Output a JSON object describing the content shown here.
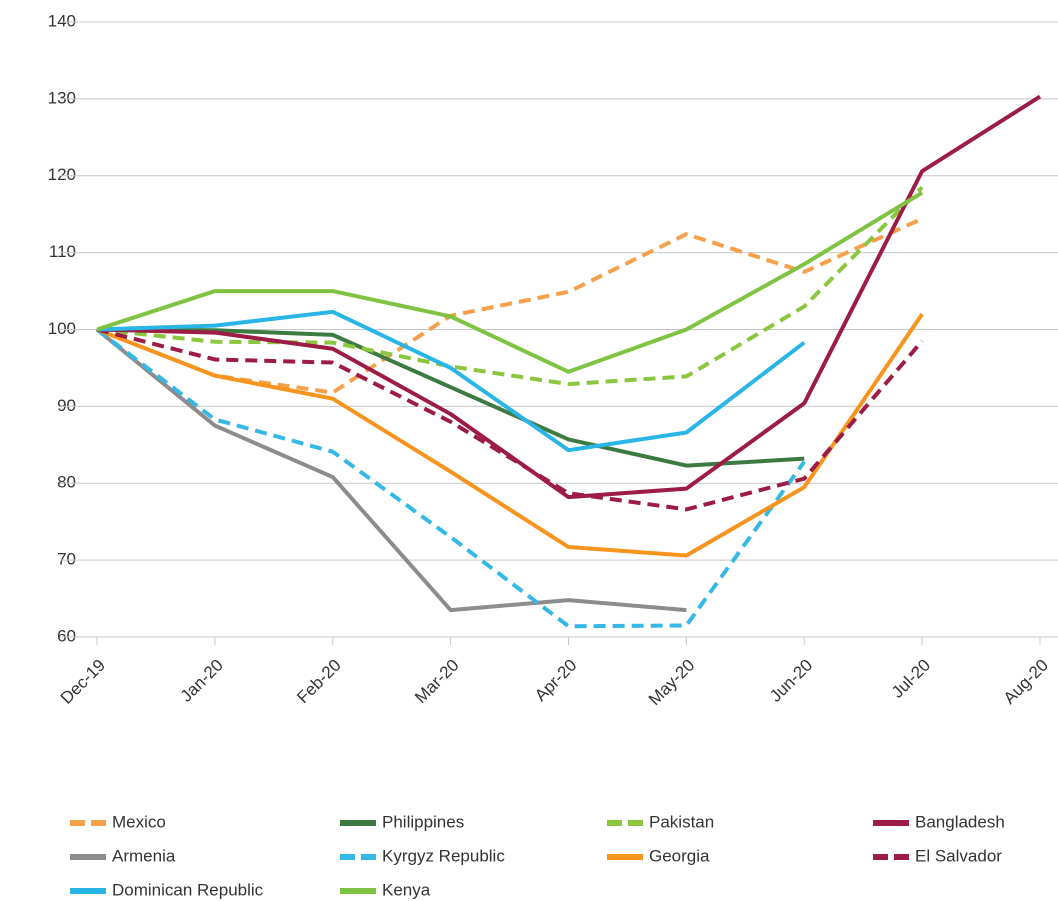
{
  "chart_data": {
    "type": "line",
    "categories": [
      "Dec-19",
      "Jan-20",
      "Feb-20",
      "Mar-20",
      "Apr-20",
      "May-20",
      "Jun-20",
      "Jul-20",
      "Aug-20"
    ],
    "ylim": [
      60,
      140
    ],
    "yticks": [
      60,
      70,
      80,
      90,
      100,
      110,
      120,
      130,
      140
    ],
    "grid": true,
    "series": [
      {
        "name": "Mexico",
        "color": "#f5a04a",
        "dashed": true,
        "values": [
          100,
          94,
          91.8,
          101.8,
          104.9,
          112.4,
          107.5,
          114.4,
          null
        ]
      },
      {
        "name": "Philippines",
        "color": "#3d7a42",
        "dashed": false,
        "values": [
          100,
          99.9,
          99.3,
          92.5,
          85.7,
          82.3,
          83.2,
          null,
          null
        ]
      },
      {
        "name": "Pakistan",
        "color": "#8cc63f",
        "dashed": true,
        "values": [
          100,
          98.4,
          98.3,
          95.2,
          92.9,
          93.9,
          103,
          118.5,
          null
        ]
      },
      {
        "name": "Bangladesh",
        "color": "#9c1c45",
        "dashed": false,
        "values": [
          100,
          99.6,
          97.5,
          89,
          78.2,
          79.3,
          90.4,
          120.6,
          130.3
        ]
      },
      {
        "name": "Armenia",
        "color": "#8c8c8c",
        "dashed": false,
        "values": [
          100,
          87.5,
          80.8,
          63.5,
          64.8,
          63.5,
          null,
          null,
          null
        ]
      },
      {
        "name": "Kyrgyz Republic",
        "color": "#35b8e6",
        "dashed": true,
        "values": [
          100,
          88.3,
          84.1,
          73,
          61.4,
          61.5,
          82.8,
          null,
          null
        ]
      },
      {
        "name": "Georgia",
        "color": "#f7941d",
        "dashed": false,
        "values": [
          100,
          94,
          91,
          81.5,
          71.7,
          70.6,
          79.5,
          102,
          null
        ]
      },
      {
        "name": "El Salvador",
        "color": "#9c1c45",
        "dashed": true,
        "values": [
          100,
          96.1,
          95.7,
          88,
          78.7,
          76.6,
          80.6,
          98.5,
          null
        ]
      },
      {
        "name": "Dominican Republic",
        "color": "#29b5e6",
        "dashed": false,
        "values": [
          100,
          100.5,
          102.3,
          95,
          84.3,
          86.6,
          98.3,
          null,
          null
        ]
      },
      {
        "name": "Kenya",
        "color": "#80c342",
        "dashed": false,
        "values": [
          100,
          105,
          105,
          101.7,
          94.5,
          100,
          108.5,
          117.8,
          null
        ]
      }
    ]
  }
}
